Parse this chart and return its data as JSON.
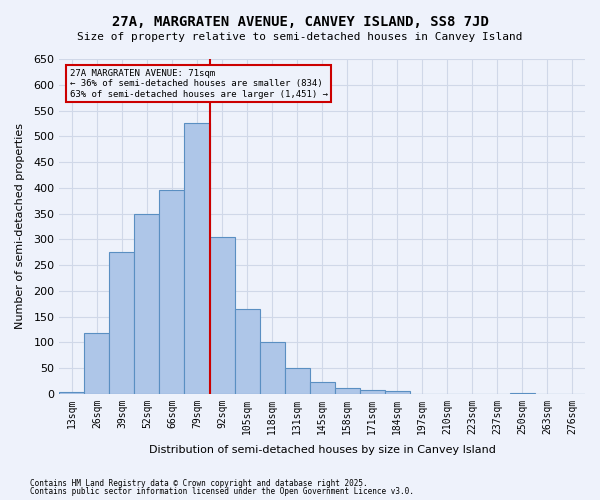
{
  "title": "27A, MARGRATEN AVENUE, CANVEY ISLAND, SS8 7JD",
  "subtitle": "Size of property relative to semi-detached houses in Canvey Island",
  "xlabel": "Distribution of semi-detached houses by size in Canvey Island",
  "ylabel": "Number of semi-detached properties",
  "footnote1": "Contains HM Land Registry data © Crown copyright and database right 2025.",
  "footnote2": "Contains public sector information licensed under the Open Government Licence v3.0.",
  "bar_labels": [
    "13sqm",
    "26sqm",
    "39sqm",
    "52sqm",
    "66sqm",
    "79sqm",
    "92sqm",
    "105sqm",
    "118sqm",
    "131sqm",
    "145sqm",
    "158sqm",
    "171sqm",
    "184sqm",
    "197sqm",
    "210sqm",
    "223sqm",
    "237sqm",
    "250sqm",
    "263sqm",
    "276sqm"
  ],
  "bar_values": [
    3,
    118,
    275,
    350,
    395,
    525,
    305,
    165,
    100,
    50,
    22,
    12,
    8,
    6,
    0,
    0,
    0,
    0,
    2,
    0,
    0
  ],
  "bar_color": "#aec6e8",
  "bar_edge_color": "#5a8fc2",
  "grid_color": "#d0d8e8",
  "background_color": "#eef2fb",
  "annotation_box_color": "#cc0000",
  "property_line_color": "#cc0000",
  "property_line_x": 5.5,
  "annotation_text": "27A MARGRATEN AVENUE: 71sqm\n← 36% of semi-detached houses are smaller (834)\n63% of semi-detached houses are larger (1,451) →",
  "ylim": [
    0,
    650
  ],
  "yticks": [
    0,
    50,
    100,
    150,
    200,
    250,
    300,
    350,
    400,
    450,
    500,
    550,
    600,
    650
  ]
}
